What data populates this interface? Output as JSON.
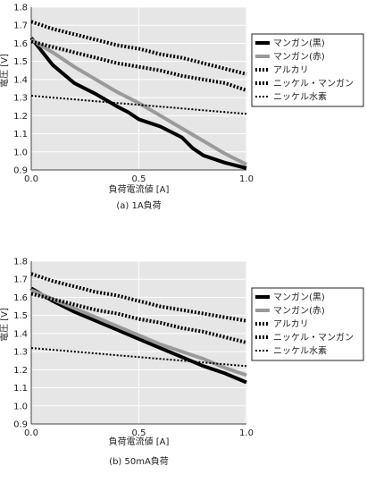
{
  "colors": {
    "background": "#ffffff",
    "plot_area": "#e6e6e6",
    "grid": "#ffffff",
    "axis": "#444444",
    "text": "#222222",
    "legend_border": "#222222"
  },
  "legend_entries": [
    {
      "name": "マンガン(黒)",
      "color": "#000000",
      "style": "solid"
    },
    {
      "name": "マンガン(赤)",
      "color": "#9a9a9a",
      "style": "solid"
    },
    {
      "name": "アルカリ",
      "color": "#000000",
      "style": "dotted"
    },
    {
      "name": "ニッケル・マンガン",
      "color": "#000000",
      "style": "dotted"
    },
    {
      "name": "ニッケル水素",
      "color": "#000000",
      "style": "dotted-light"
    }
  ],
  "chart_data": [
    {
      "type": "line",
      "caption": "(a) 1A負荷",
      "xlabel": "負荷電流値 [A]",
      "ylabel": "電圧 [V]",
      "xlim": [
        0.0,
        1.0
      ],
      "ylim": [
        0.9,
        1.8
      ],
      "xticks": [
        "0.0",
        "0.5",
        "1.0"
      ],
      "yticks": [
        "0.9",
        "1.0",
        "1.1",
        "1.2",
        "1.3",
        "1.4",
        "1.5",
        "1.6",
        "1.7",
        "1.8"
      ],
      "grid": true,
      "legend": "right",
      "series": [
        {
          "name": "マンガン(黒)",
          "x": [
            0.0,
            0.1,
            0.2,
            0.3,
            0.4,
            0.45,
            0.5,
            0.6,
            0.7,
            0.75,
            0.8,
            0.9,
            1.0
          ],
          "y": [
            1.63,
            1.48,
            1.38,
            1.32,
            1.25,
            1.22,
            1.18,
            1.14,
            1.08,
            1.02,
            0.98,
            0.94,
            0.91
          ]
        },
        {
          "name": "マンガン(赤)",
          "x": [
            0.0,
            0.1,
            0.2,
            0.3,
            0.4,
            0.5,
            0.6,
            0.7,
            0.8,
            0.9,
            1.0
          ],
          "y": [
            1.62,
            1.55,
            1.47,
            1.4,
            1.33,
            1.27,
            1.2,
            1.13,
            1.06,
            0.99,
            0.93
          ]
        },
        {
          "name": "アルカリ",
          "x": [
            0.0,
            0.1,
            0.2,
            0.3,
            0.4,
            0.5,
            0.6,
            0.7,
            0.8,
            0.9,
            1.0
          ],
          "y": [
            1.61,
            1.58,
            1.55,
            1.52,
            1.49,
            1.47,
            1.45,
            1.42,
            1.4,
            1.38,
            1.34
          ]
        },
        {
          "name": "ニッケル・マンガン",
          "x": [
            0.0,
            0.1,
            0.2,
            0.3,
            0.4,
            0.5,
            0.6,
            0.7,
            0.8,
            0.9,
            1.0
          ],
          "y": [
            1.72,
            1.68,
            1.65,
            1.62,
            1.59,
            1.57,
            1.54,
            1.52,
            1.49,
            1.46,
            1.43
          ]
        },
        {
          "name": "ニッケル水素",
          "x": [
            0.0,
            0.1,
            0.2,
            0.3,
            0.4,
            0.5,
            0.6,
            0.7,
            0.8,
            0.9,
            1.0
          ],
          "y": [
            1.31,
            1.3,
            1.29,
            1.28,
            1.27,
            1.26,
            1.25,
            1.24,
            1.23,
            1.22,
            1.21
          ]
        }
      ]
    },
    {
      "type": "line",
      "caption": "(b) 50mA負荷",
      "xlabel": "負荷電流値 [A]",
      "ylabel": "電圧 [V]",
      "xlim": [
        0.0,
        1.0
      ],
      "ylim": [
        0.9,
        1.8
      ],
      "xticks": [
        "0.0",
        "0.5",
        "1.0"
      ],
      "yticks": [
        "0.9",
        "1.0",
        "1.1",
        "1.2",
        "1.3",
        "1.4",
        "1.5",
        "1.6",
        "1.7",
        "1.8"
      ],
      "grid": true,
      "legend": "right",
      "series": [
        {
          "name": "マンガン(黒)",
          "x": [
            0.0,
            0.1,
            0.2,
            0.3,
            0.4,
            0.5,
            0.6,
            0.7,
            0.8,
            0.9,
            1.0
          ],
          "y": [
            1.65,
            1.58,
            1.52,
            1.47,
            1.42,
            1.37,
            1.32,
            1.27,
            1.22,
            1.18,
            1.13
          ]
        },
        {
          "name": "マンガン(赤)",
          "x": [
            0.0,
            0.1,
            0.2,
            0.3,
            0.4,
            0.5,
            0.6,
            0.7,
            0.8,
            0.9,
            1.0
          ],
          "y": [
            1.64,
            1.59,
            1.54,
            1.49,
            1.44,
            1.39,
            1.34,
            1.3,
            1.26,
            1.21,
            1.17
          ]
        },
        {
          "name": "アルカリ",
          "x": [
            0.0,
            0.1,
            0.2,
            0.3,
            0.4,
            0.5,
            0.6,
            0.7,
            0.8,
            0.9,
            1.0
          ],
          "y": [
            1.62,
            1.59,
            1.56,
            1.53,
            1.51,
            1.48,
            1.46,
            1.43,
            1.41,
            1.38,
            1.35
          ]
        },
        {
          "name": "ニッケル・マンガン",
          "x": [
            0.0,
            0.1,
            0.2,
            0.3,
            0.4,
            0.5,
            0.6,
            0.7,
            0.8,
            0.9,
            1.0
          ],
          "y": [
            1.73,
            1.69,
            1.66,
            1.63,
            1.61,
            1.58,
            1.55,
            1.53,
            1.51,
            1.49,
            1.47
          ]
        },
        {
          "name": "ニッケル水素",
          "x": [
            0.0,
            0.1,
            0.2,
            0.3,
            0.4,
            0.5,
            0.6,
            0.7,
            0.8,
            0.9,
            1.0
          ],
          "y": [
            1.32,
            1.31,
            1.3,
            1.29,
            1.28,
            1.27,
            1.26,
            1.25,
            1.24,
            1.23,
            1.22
          ]
        }
      ]
    }
  ]
}
